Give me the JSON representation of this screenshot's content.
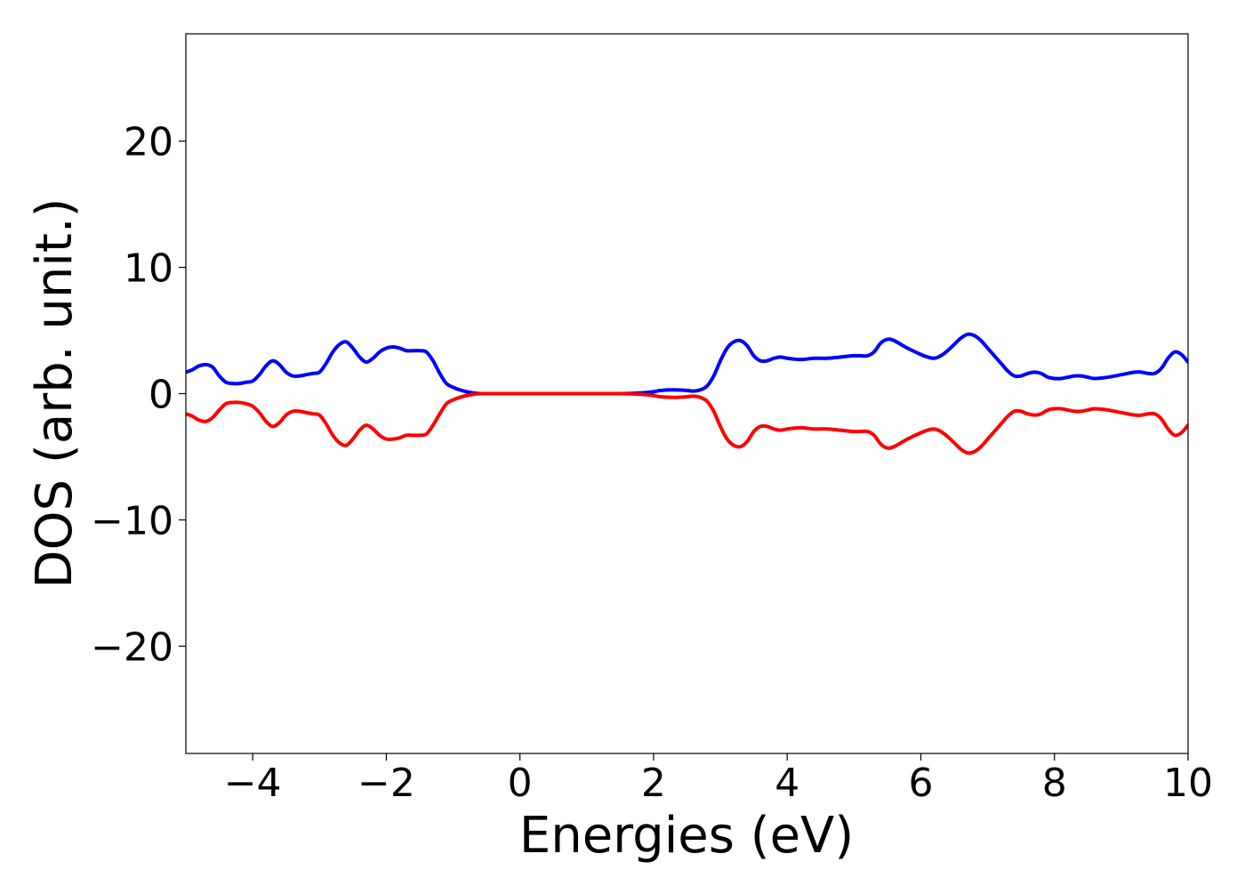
{
  "chart_data": {
    "type": "line",
    "title": "",
    "xlabel": "Energies (eV)",
    "ylabel": "DOS (arb. unit.)",
    "xlim": [
      -5,
      10
    ],
    "ylim": [
      -28.5,
      28.5
    ],
    "xticks": [
      -4,
      -2,
      0,
      2,
      4,
      6,
      8,
      10
    ],
    "xtick_labels": [
      "−4",
      "−2",
      "0",
      "2",
      "4",
      "6",
      "8",
      "10"
    ],
    "yticks": [
      20,
      10,
      0,
      -10,
      -20
    ],
    "ytick_labels": [
      "20",
      "10",
      "0",
      "−10",
      "−20"
    ],
    "grid": false,
    "legend": "none",
    "series": [
      {
        "color": "#0000ff",
        "x": [
          -5.0,
          -4.9,
          -4.8,
          -4.7,
          -4.6,
          -4.5,
          -4.4,
          -4.3,
          -4.2,
          -4.1,
          -4.0,
          -3.9,
          -3.8,
          -3.7,
          -3.6,
          -3.5,
          -3.4,
          -3.3,
          -3.2,
          -3.1,
          -3.0,
          -2.9,
          -2.8,
          -2.7,
          -2.6,
          -2.5,
          -2.4,
          -2.3,
          -2.2,
          -2.1,
          -2.0,
          -1.9,
          -1.8,
          -1.7,
          -1.6,
          -1.5,
          -1.4,
          -1.3,
          -1.2,
          -1.1,
          -1.0,
          -0.9,
          -0.8,
          -0.7,
          -0.6,
          -0.5,
          0.0,
          0.5,
          1.0,
          1.5,
          1.8,
          2.0,
          2.1,
          2.3,
          2.5,
          2.6,
          2.7,
          2.8,
          2.9,
          3.0,
          3.1,
          3.2,
          3.3,
          3.4,
          3.5,
          3.6,
          3.7,
          3.8,
          3.9,
          4.0,
          4.2,
          4.4,
          4.6,
          4.8,
          5.0,
          5.1,
          5.2,
          5.3,
          5.4,
          5.5,
          5.6,
          5.8,
          6.0,
          6.1,
          6.2,
          6.3,
          6.4,
          6.5,
          6.6,
          6.7,
          6.8,
          6.9,
          7.0,
          7.1,
          7.2,
          7.3,
          7.4,
          7.5,
          7.6,
          7.7,
          7.8,
          7.9,
          8.0,
          8.1,
          8.2,
          8.3,
          8.4,
          8.5,
          8.6,
          8.8,
          9.0,
          9.2,
          9.3,
          9.4,
          9.5,
          9.6,
          9.7,
          9.8,
          9.9,
          10.0
        ],
        "y": [
          1.7,
          1.9,
          2.2,
          2.3,
          2.1,
          1.4,
          0.9,
          0.8,
          0.8,
          0.9,
          1.0,
          1.5,
          2.2,
          2.6,
          2.3,
          1.7,
          1.4,
          1.4,
          1.5,
          1.6,
          1.7,
          2.4,
          3.3,
          3.9,
          4.1,
          3.6,
          2.9,
          2.5,
          2.8,
          3.3,
          3.6,
          3.7,
          3.6,
          3.4,
          3.4,
          3.4,
          3.3,
          2.6,
          1.6,
          0.8,
          0.5,
          0.3,
          0.15,
          0.05,
          0.0,
          0.0,
          0.0,
          0.0,
          0.0,
          0.0,
          0.05,
          0.15,
          0.25,
          0.3,
          0.25,
          0.2,
          0.3,
          0.6,
          1.4,
          2.6,
          3.6,
          4.1,
          4.2,
          3.8,
          3.0,
          2.6,
          2.6,
          2.8,
          2.9,
          2.8,
          2.7,
          2.8,
          2.8,
          2.9,
          3.0,
          3.0,
          3.0,
          3.3,
          4.0,
          4.3,
          4.2,
          3.6,
          3.1,
          2.9,
          2.8,
          3.0,
          3.4,
          3.9,
          4.4,
          4.7,
          4.6,
          4.2,
          3.6,
          3.0,
          2.4,
          1.8,
          1.4,
          1.4,
          1.6,
          1.7,
          1.6,
          1.3,
          1.2,
          1.2,
          1.3,
          1.4,
          1.4,
          1.3,
          1.2,
          1.3,
          1.5,
          1.7,
          1.7,
          1.6,
          1.6,
          2.0,
          2.8,
          3.3,
          3.1,
          2.5
        ]
      },
      {
        "color": "#ff0000",
        "x": [
          -5.0,
          -4.9,
          -4.8,
          -4.7,
          -4.6,
          -4.5,
          -4.4,
          -4.3,
          -4.2,
          -4.1,
          -4.0,
          -3.9,
          -3.8,
          -3.7,
          -3.6,
          -3.5,
          -3.4,
          -3.3,
          -3.2,
          -3.1,
          -3.0,
          -2.9,
          -2.8,
          -2.7,
          -2.6,
          -2.5,
          -2.4,
          -2.3,
          -2.2,
          -2.1,
          -2.0,
          -1.9,
          -1.8,
          -1.7,
          -1.6,
          -1.5,
          -1.4,
          -1.3,
          -1.2,
          -1.1,
          -1.0,
          -0.9,
          -0.8,
          -0.7,
          -0.6,
          -0.5,
          0.0,
          0.5,
          1.0,
          1.5,
          1.8,
          2.0,
          2.1,
          2.3,
          2.5,
          2.6,
          2.7,
          2.8,
          2.9,
          3.0,
          3.1,
          3.2,
          3.3,
          3.4,
          3.5,
          3.6,
          3.7,
          3.8,
          3.9,
          4.0,
          4.2,
          4.4,
          4.6,
          4.8,
          5.0,
          5.1,
          5.2,
          5.3,
          5.4,
          5.5,
          5.6,
          5.8,
          6.0,
          6.1,
          6.2,
          6.3,
          6.4,
          6.5,
          6.6,
          6.7,
          6.8,
          6.9,
          7.0,
          7.1,
          7.2,
          7.3,
          7.4,
          7.5,
          7.6,
          7.7,
          7.8,
          7.9,
          8.0,
          8.1,
          8.2,
          8.3,
          8.4,
          8.5,
          8.6,
          8.8,
          9.0,
          9.2,
          9.3,
          9.4,
          9.5,
          9.6,
          9.7,
          9.8,
          9.9,
          10.0
        ],
        "y": [
          -1.6,
          -1.8,
          -2.1,
          -2.2,
          -1.9,
          -1.3,
          -0.8,
          -0.7,
          -0.7,
          -0.8,
          -1.0,
          -1.5,
          -2.2,
          -2.6,
          -2.3,
          -1.7,
          -1.4,
          -1.4,
          -1.5,
          -1.6,
          -1.7,
          -2.4,
          -3.3,
          -3.9,
          -4.1,
          -3.6,
          -2.9,
          -2.5,
          -2.8,
          -3.3,
          -3.6,
          -3.6,
          -3.5,
          -3.3,
          -3.3,
          -3.3,
          -3.2,
          -2.5,
          -1.6,
          -0.8,
          -0.5,
          -0.3,
          -0.15,
          -0.05,
          0.0,
          0.0,
          0.0,
          0.0,
          0.0,
          0.0,
          -0.05,
          -0.15,
          -0.25,
          -0.3,
          -0.25,
          -0.2,
          -0.3,
          -0.6,
          -1.4,
          -2.6,
          -3.6,
          -4.1,
          -4.2,
          -3.8,
          -3.0,
          -2.6,
          -2.6,
          -2.8,
          -2.9,
          -2.8,
          -2.7,
          -2.8,
          -2.8,
          -2.9,
          -3.0,
          -3.0,
          -3.0,
          -3.3,
          -4.0,
          -4.3,
          -4.2,
          -3.6,
          -3.1,
          -2.9,
          -2.8,
          -3.0,
          -3.4,
          -3.9,
          -4.4,
          -4.7,
          -4.6,
          -4.2,
          -3.6,
          -3.0,
          -2.4,
          -1.8,
          -1.4,
          -1.4,
          -1.6,
          -1.7,
          -1.6,
          -1.3,
          -1.2,
          -1.2,
          -1.3,
          -1.4,
          -1.4,
          -1.3,
          -1.2,
          -1.3,
          -1.5,
          -1.7,
          -1.7,
          -1.6,
          -1.6,
          -2.0,
          -2.8,
          -3.3,
          -3.1,
          -2.5
        ]
      }
    ]
  }
}
